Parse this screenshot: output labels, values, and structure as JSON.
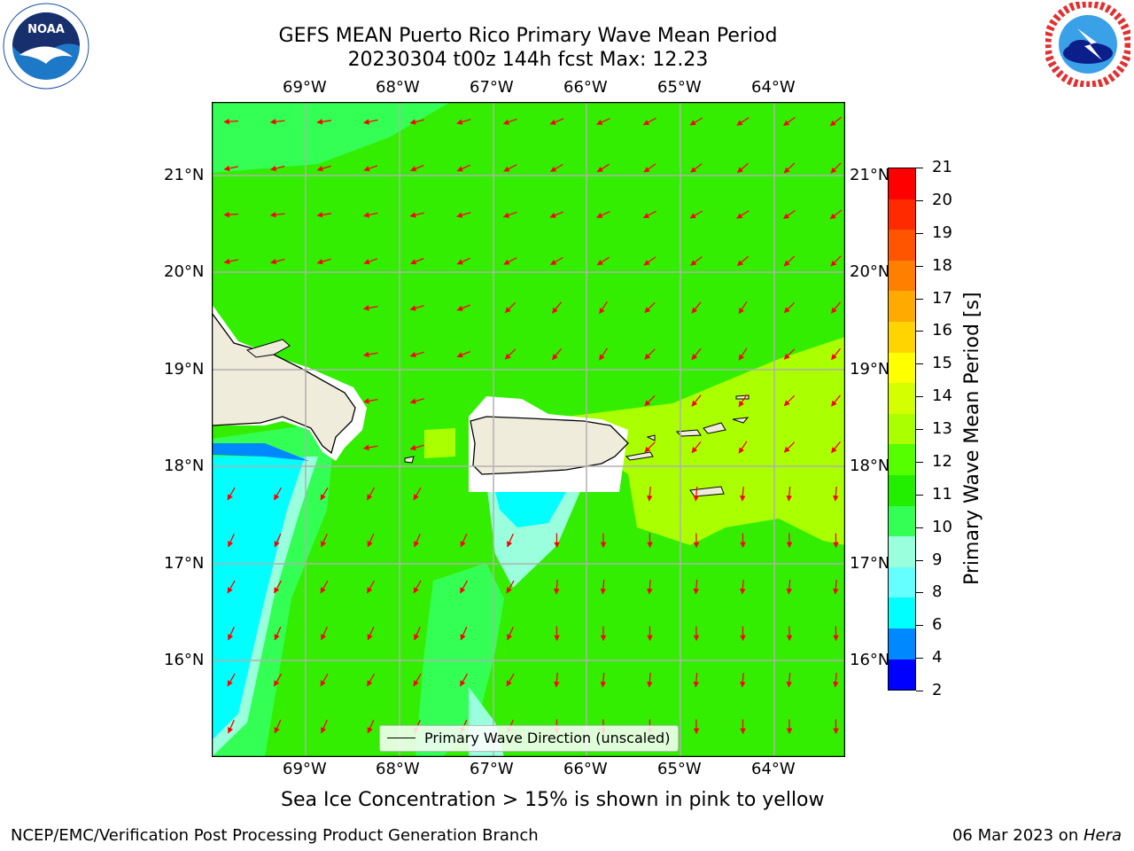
{
  "title_line1": "GEFS MEAN Puerto Rico Primary Wave Mean Period",
  "title_line2": "20230304 t00z 144h fcst   Max: 12.23",
  "lon_labels": [
    "69°W",
    "68°W",
    "67°W",
    "66°W",
    "65°W",
    "64°W"
  ],
  "lat_labels": [
    "21°N",
    "20°N",
    "19°N",
    "18°N",
    "17°N",
    "16°N"
  ],
  "colorbar": {
    "label": "Primary Wave Mean Period [s]",
    "ticks": [
      "21",
      "20",
      "19",
      "18",
      "17",
      "16",
      "15",
      "14",
      "13",
      "12",
      "11",
      "10",
      "9",
      "8",
      "6",
      "4",
      "2"
    ],
    "colors": [
      "#ff0000",
      "#ff2a00",
      "#ff5500",
      "#ff7f00",
      "#ffaa00",
      "#ffd400",
      "#ffff00",
      "#d4ff00",
      "#aaff00",
      "#55ff00",
      "#22ee00",
      "#33ff55",
      "#99ffdd",
      "#66ffff",
      "#00ffff",
      "#0088ff",
      "#0000ff"
    ]
  },
  "legend_text": "Primary Wave Direction (unscaled)",
  "sea_ice_note": "Sea Ice Concentration > 15% is shown in pink to yellow",
  "footer_left": "NCEP/EMC/Verification Post Processing Product Generation Branch",
  "footer_right_date": "06 Mar 2023 on ",
  "footer_right_host": "Hera",
  "logo_left_text": "NOAA",
  "colors": {
    "field_green": "#33ee00",
    "field_lime": "#aaff00",
    "light_green": "#33ff55",
    "aqua": "#99ffdd",
    "cyan": "#00ffff",
    "blue": "#0088ff",
    "land": "#efecdc",
    "arrow": "#ff0000",
    "grid": "#b0b0b0"
  }
}
